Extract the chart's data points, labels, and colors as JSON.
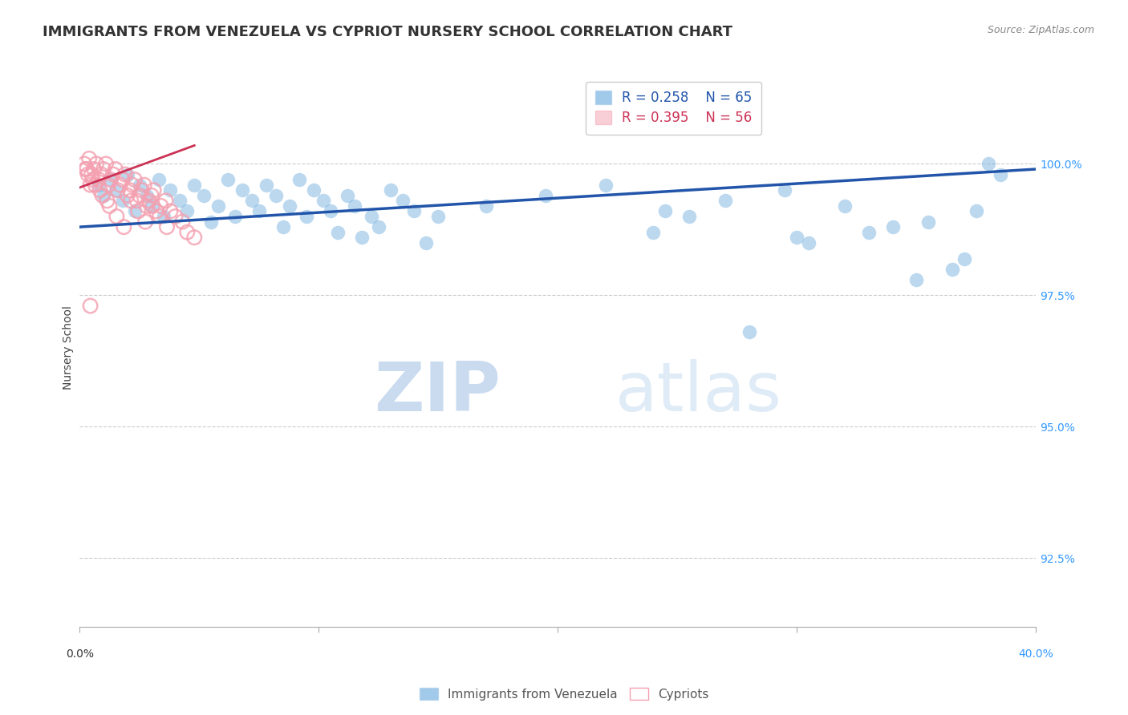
{
  "title": "IMMIGRANTS FROM VENEZUELA VS CYPRIOT NURSERY SCHOOL CORRELATION CHART",
  "source": "Source: ZipAtlas.com",
  "ylabel": "Nursery School",
  "y_ticks": [
    92.5,
    95.0,
    97.5,
    100.0
  ],
  "y_tick_labels": [
    "92.5%",
    "95.0%",
    "97.5%",
    "100.0%"
  ],
  "xlim": [
    0.0,
    40.0
  ],
  "ylim": [
    91.2,
    101.8
  ],
  "legend_r_blue": "R = 0.258",
  "legend_n_blue": "N = 65",
  "legend_r_pink": "R = 0.395",
  "legend_n_pink": "N = 56",
  "blue_color": "#7ab3e0",
  "pink_color": "#f4a0b0",
  "trend_blue_color": "#2255aa",
  "trend_pink_color": "#cc3355",
  "watermark_zip": "ZIP",
  "watermark_atlas": "atlas",
  "grid_color": "#cccccc",
  "background_color": "#ffffff",
  "title_fontsize": 13,
  "axis_label_fontsize": 10,
  "tick_fontsize": 10,
  "legend_fontsize": 12,
  "blue_scatter_x": [
    0.8,
    1.0,
    1.3,
    1.5,
    1.8,
    2.0,
    2.3,
    2.5,
    2.8,
    3.0,
    3.3,
    3.5,
    3.8,
    4.2,
    4.5,
    4.8,
    5.2,
    5.5,
    5.8,
    6.2,
    6.5,
    6.8,
    7.2,
    7.5,
    7.8,
    8.2,
    8.5,
    8.8,
    9.2,
    9.5,
    9.8,
    10.2,
    10.5,
    10.8,
    11.2,
    11.5,
    11.8,
    12.2,
    12.5,
    13.0,
    13.5,
    14.0,
    14.5,
    15.0,
    17.0,
    19.5,
    22.0,
    24.5,
    27.0,
    29.5,
    30.5,
    32.0,
    34.0,
    35.5,
    37.5,
    38.5,
    24.0,
    25.5,
    30.0,
    33.0,
    35.0,
    36.5,
    37.0,
    28.0,
    38.0
  ],
  "blue_scatter_y": [
    99.6,
    99.4,
    99.7,
    99.5,
    99.3,
    99.8,
    99.1,
    99.6,
    99.4,
    99.2,
    99.7,
    99.0,
    99.5,
    99.3,
    99.1,
    99.6,
    99.4,
    98.9,
    99.2,
    99.7,
    99.0,
    99.5,
    99.3,
    99.1,
    99.6,
    99.4,
    98.8,
    99.2,
    99.7,
    99.0,
    99.5,
    99.3,
    99.1,
    98.7,
    99.4,
    99.2,
    98.6,
    99.0,
    98.8,
    99.5,
    99.3,
    99.1,
    98.5,
    99.0,
    99.2,
    99.4,
    99.6,
    99.1,
    99.3,
    99.5,
    98.5,
    99.2,
    98.8,
    98.9,
    99.1,
    99.8,
    98.7,
    99.0,
    98.6,
    98.7,
    97.8,
    98.0,
    98.2,
    96.8,
    100.0
  ],
  "pink_scatter_x": [
    0.2,
    0.3,
    0.4,
    0.5,
    0.6,
    0.7,
    0.8,
    0.9,
    1.0,
    1.1,
    1.2,
    1.3,
    1.4,
    1.5,
    1.6,
    1.7,
    1.8,
    1.9,
    2.0,
    2.1,
    2.2,
    2.3,
    2.4,
    2.5,
    2.6,
    2.7,
    2.8,
    2.9,
    3.0,
    3.1,
    3.2,
    3.4,
    3.6,
    3.8,
    4.0,
    4.3,
    4.5,
    4.8,
    0.35,
    0.65,
    0.95,
    1.25,
    1.55,
    1.85,
    2.15,
    2.45,
    2.75,
    3.05,
    3.35,
    3.65,
    0.25,
    0.55,
    0.85,
    1.15,
    0.45,
    0.45
  ],
  "pink_scatter_y": [
    100.0,
    99.9,
    100.1,
    99.8,
    99.9,
    100.0,
    99.7,
    99.8,
    99.9,
    100.0,
    99.6,
    99.7,
    99.8,
    99.9,
    99.5,
    99.6,
    99.7,
    99.8,
    99.4,
    99.5,
    99.6,
    99.7,
    99.3,
    99.4,
    99.5,
    99.6,
    99.2,
    99.3,
    99.4,
    99.5,
    99.1,
    99.2,
    99.3,
    99.1,
    99.0,
    98.9,
    98.7,
    98.6,
    99.8,
    99.6,
    99.4,
    99.2,
    99.0,
    98.8,
    99.3,
    99.1,
    98.9,
    99.2,
    99.0,
    98.8,
    99.9,
    99.7,
    99.5,
    99.3,
    99.6,
    97.3
  ],
  "blue_trend_x": [
    0.0,
    40.0
  ],
  "blue_trend_y": [
    98.8,
    99.9
  ],
  "pink_trend_x": [
    0.0,
    4.8
  ],
  "pink_trend_y": [
    99.55,
    100.35
  ]
}
